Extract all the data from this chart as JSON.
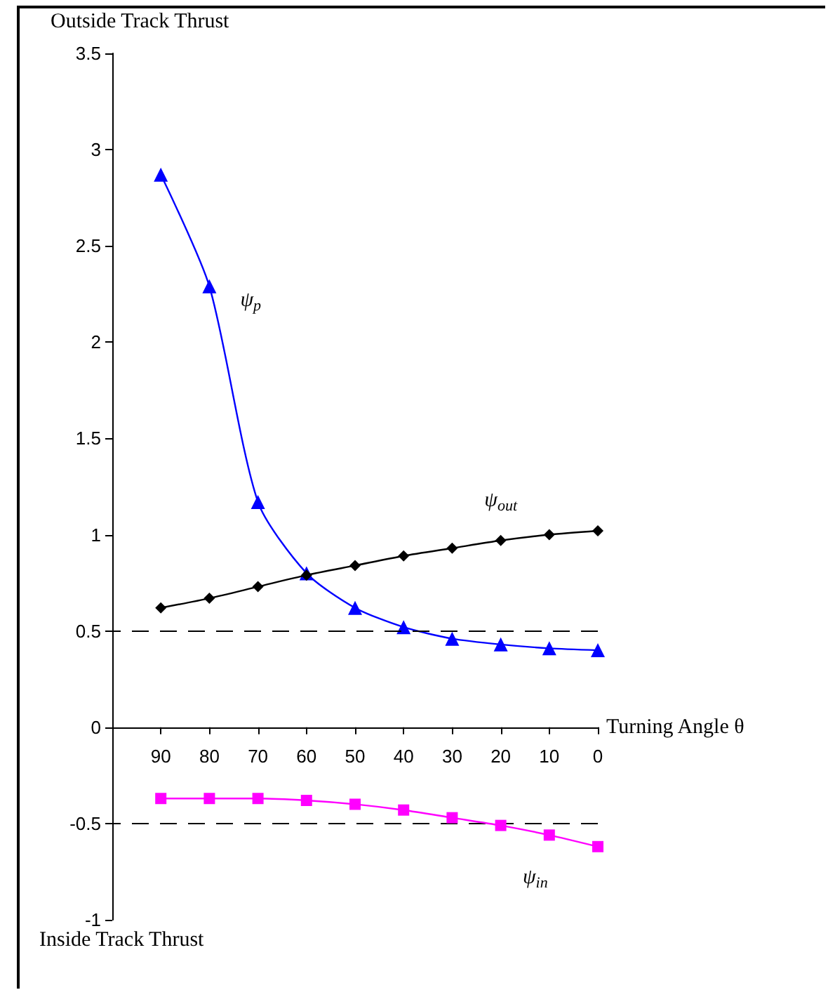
{
  "chart_data": {
    "type": "line",
    "ylabel": "Outside Track Thrust",
    "xlabel": "Turning Angle θ",
    "annotations": [
      "Inside Track Thrust"
    ],
    "x": [
      90,
      80,
      70,
      60,
      50,
      40,
      30,
      20,
      10,
      0
    ],
    "xlim": [
      100,
      0
    ],
    "xticks": [
      90,
      80,
      70,
      60,
      50,
      40,
      30,
      20,
      10,
      0
    ],
    "ylim": [
      -1,
      3.5
    ],
    "yticks": [
      -1,
      -0.5,
      0,
      0.5,
      1,
      1.5,
      2,
      2.5,
      3,
      3.5
    ],
    "grid": false,
    "legend": false,
    "series": [
      {
        "name": "ψ$_{p}$",
        "color": "#0000ff",
        "marker": "triangle",
        "values": [
          2.87,
          2.29,
          1.17,
          0.8,
          0.62,
          0.52,
          0.46,
          0.43,
          0.41,
          0.4
        ]
      },
      {
        "name": "ψ$_{out}$",
        "color": "#000000",
        "marker": "diamond",
        "values": [
          0.62,
          0.67,
          0.73,
          0.79,
          0.84,
          0.89,
          0.93,
          0.97,
          1.0,
          1.02
        ]
      },
      {
        "name": "ψ$_{in}$",
        "color": "#ff00ff",
        "marker": "square",
        "values": [
          -0.37,
          -0.37,
          -0.37,
          -0.38,
          -0.4,
          -0.43,
          -0.47,
          -0.51,
          -0.56,
          -0.62
        ]
      }
    ],
    "ref_lines": [
      {
        "axis": "y",
        "value": 0.5,
        "color": "#000000",
        "line_style": "dashed"
      },
      {
        "axis": "y",
        "value": -0.5,
        "color": "#000000",
        "line_style": "dashed"
      }
    ]
  }
}
